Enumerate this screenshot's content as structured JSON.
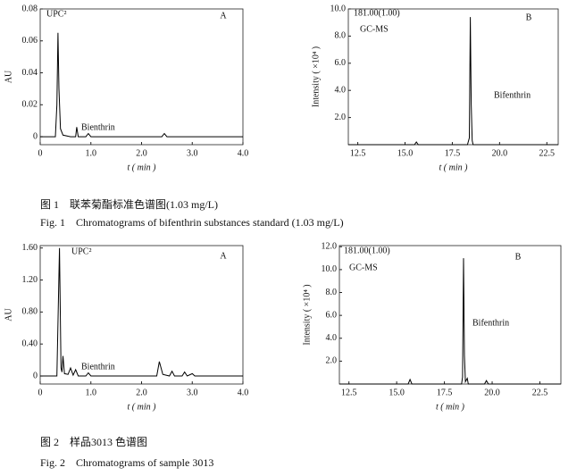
{
  "chart_data": [
    {
      "type": "line",
      "color": "#000000",
      "x": [
        0,
        0.3,
        0.33,
        0.35,
        0.37,
        0.4,
        0.45,
        0.6,
        0.7,
        0.72,
        0.75,
        0.9,
        0.95,
        1.0,
        1.5,
        2.0,
        2.4,
        2.45,
        2.5,
        3.0,
        4.0
      ],
      "values": [
        0,
        0,
        0.02,
        0.065,
        0.03,
        0.005,
        0.001,
        0,
        0,
        0.006,
        0,
        0,
        0.002,
        0,
        0,
        0,
        0,
        0.002,
        0,
        0,
        0
      ],
      "xlim": [
        0,
        4.0
      ],
      "ylim": [
        -0.005,
        0.08
      ],
      "xticks": [
        0,
        {
          "value": 1,
          "label": "1.0"
        },
        {
          "value": 2,
          "label": "2.0"
        },
        {
          "value": 3,
          "label": "3.0"
        },
        {
          "value": 4,
          "label": "4.0"
        }
      ],
      "yticks": [
        0,
        0.02,
        0.04,
        0.06,
        0.08
      ],
      "xlabel": "t ( min )",
      "ylabel": "AU",
      "annotations": [
        "UPC²",
        "A",
        "Bienthrin"
      ]
    },
    {
      "type": "line",
      "color": "#000000",
      "x": [
        12.0,
        15.5,
        15.6,
        15.7,
        18.3,
        18.4,
        18.45,
        18.5,
        18.55,
        18.6,
        18.7,
        23.1
      ],
      "values": [
        0,
        0,
        0.2,
        0,
        0,
        0.5,
        9.4,
        3.0,
        0.3,
        0,
        0,
        0
      ],
      "xlim": [
        12.0,
        23.1
      ],
      "ylim": [
        0,
        10
      ],
      "xticks": [
        12.5,
        {
          "value": 15,
          "label": "15.0"
        },
        17.5,
        {
          "value": 20,
          "label": "20.0"
        },
        22.5
      ],
      "yticks": [
        {
          "value": 2,
          "label": "2.0"
        },
        {
          "value": 4,
          "label": "4.0"
        },
        {
          "value": 6,
          "label": "6.0"
        },
        {
          "value": 8,
          "label": "8.0"
        },
        {
          "value": 10,
          "label": "10.0"
        }
      ],
      "xlabel": "t ( min )",
      "ylabel": "Intensity ( ×10⁴ )",
      "annotations": [
        "181.00(1.00)",
        "GC-MS",
        "B",
        "Bifenthrin"
      ]
    },
    {
      "type": "line",
      "color": "#000000",
      "x": [
        0,
        0.33,
        0.38,
        0.41,
        0.43,
        0.45,
        0.48,
        0.55,
        0.6,
        0.65,
        0.7,
        0.75,
        0.9,
        0.95,
        1.0,
        2.0,
        2.3,
        2.35,
        2.42,
        2.55,
        2.6,
        2.65,
        2.8,
        2.85,
        2.9,
        3.0,
        3.05,
        4.0
      ],
      "values": [
        0,
        0,
        1.6,
        0.1,
        0.05,
        0.25,
        0.03,
        0.02,
        0.1,
        0.01,
        0.08,
        0,
        0,
        0.04,
        0,
        0,
        0,
        0.18,
        0.02,
        0,
        0.06,
        0,
        0,
        0.05,
        0,
        0.03,
        0,
        0
      ],
      "xlim": [
        0,
        4.0
      ],
      "ylim": [
        -0.1,
        1.63
      ],
      "xticks": [
        0,
        {
          "value": 1,
          "label": "1.0"
        },
        {
          "value": 2,
          "label": "2.0"
        },
        {
          "value": 3,
          "label": "3.0"
        },
        {
          "value": 4,
          "label": "4.0"
        }
      ],
      "yticks": [
        0,
        {
          "value": 0.4,
          "label": "0.40"
        },
        {
          "value": 0.8,
          "label": "0.80"
        },
        {
          "value": 1.2,
          "label": "1.20"
        },
        {
          "value": 1.6,
          "label": "1.60"
        }
      ],
      "xlabel": "t ( min )",
      "ylabel": "AU",
      "annotations": [
        "UPC²",
        "A",
        "Bienthrin"
      ]
    },
    {
      "type": "line",
      "color": "#000000",
      "x": [
        12.0,
        15.6,
        15.7,
        15.8,
        18.4,
        18.45,
        18.5,
        18.55,
        18.6,
        18.7,
        18.75,
        19.6,
        19.7,
        19.8,
        23.6
      ],
      "values": [
        0,
        0,
        0.4,
        0,
        0,
        0.6,
        11.0,
        2.5,
        0.2,
        0.5,
        0,
        0,
        0.3,
        0,
        0
      ],
      "xlim": [
        12.0,
        23.6
      ],
      "ylim": [
        0,
        12.1
      ],
      "xticks": [
        12.5,
        {
          "value": 15,
          "label": "15.0"
        },
        17.5,
        {
          "value": 20,
          "label": "20.0"
        },
        22.5
      ],
      "yticks": [
        {
          "value": 2,
          "label": "2.0"
        },
        {
          "value": 4,
          "label": "4.0"
        },
        {
          "value": 6,
          "label": "6.0"
        },
        {
          "value": 8,
          "label": "8.0"
        },
        {
          "value": 10,
          "label": "10.0"
        },
        {
          "value": 12,
          "label": "12.0"
        }
      ],
      "xlabel": "t ( min )",
      "ylabel": "Intensity ( ×10⁴ )",
      "annotations": [
        "181.00(1.00)",
        "GC-MS",
        "B",
        "Bifenthrin"
      ]
    }
  ],
  "captions": [
    "图 1　联苯菊酯标准色谱图(1.03 mg/L)",
    "Fig. 1　Chromatograms of bifenthrin substances standard (1.03 mg/L)",
    "图 2　样品3013 色谱图",
    "Fig. 2　Chromatograms of sample 3013"
  ]
}
